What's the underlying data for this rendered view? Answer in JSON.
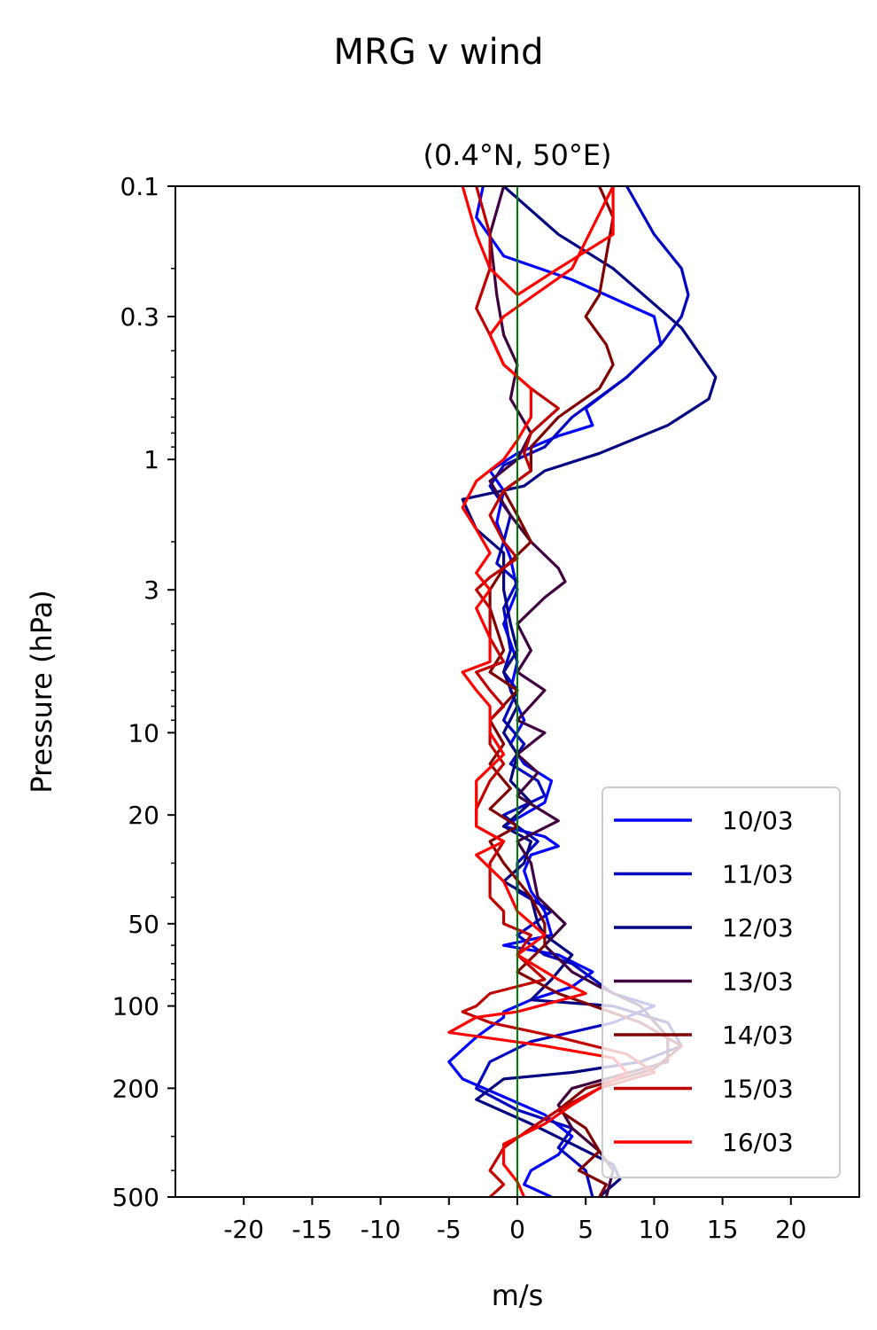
{
  "chart_data": {
    "type": "line",
    "suptitle": "MRG v wind",
    "title": "(0.4°N, 50°E)",
    "xlabel": "m/s",
    "ylabel": "Pressure (hPa)",
    "xlim": [
      -25,
      25
    ],
    "ylim": [
      500,
      0.1
    ],
    "yscale": "log",
    "xticks": [
      -20,
      -15,
      -10,
      -5,
      0,
      5,
      10,
      15,
      20
    ],
    "xtick_labels": [
      "-20",
      "-15",
      "-10",
      "-5",
      "0",
      "5",
      "10",
      "15",
      "20"
    ],
    "yticks": [
      0.1,
      0.3,
      1,
      3,
      10,
      20,
      50,
      100,
      200,
      500
    ],
    "ytick_labels": [
      "0.1",
      "0.3",
      "1",
      "3",
      "10",
      "20",
      "50",
      "100",
      "200",
      "500"
    ],
    "zero_line_color": "#008000",
    "legend_position": "lower-right",
    "series": [
      {
        "name": "10/03",
        "color": "#0000ff",
        "points": [
          [
            -2.5,
            0.1
          ],
          [
            -3,
            0.13
          ],
          [
            -1,
            0.18
          ],
          [
            4,
            0.22
          ],
          [
            10,
            0.3
          ],
          [
            10.5,
            0.38
          ],
          [
            8,
            0.5
          ],
          [
            5,
            0.65
          ],
          [
            5.5,
            0.75
          ],
          [
            3,
            0.82
          ],
          [
            0,
            0.95
          ],
          [
            -2,
            1.1
          ],
          [
            -1,
            1.3
          ],
          [
            -1.5,
            1.7
          ],
          [
            -0.5,
            2.3
          ],
          [
            0,
            3
          ],
          [
            -1,
            4
          ],
          [
            0,
            5.5
          ],
          [
            -0.5,
            7
          ],
          [
            0.5,
            9
          ],
          [
            -0.5,
            11
          ],
          [
            0.5,
            13
          ],
          [
            2.5,
            15
          ],
          [
            2,
            18
          ],
          [
            -1,
            22
          ],
          [
            2,
            24
          ],
          [
            3,
            26
          ],
          [
            1,
            28
          ],
          [
            0.5,
            32
          ],
          [
            1,
            38
          ],
          [
            2,
            45
          ],
          [
            2.5,
            55
          ],
          [
            -1,
            60
          ],
          [
            3,
            65
          ],
          [
            5.5,
            75
          ],
          [
            4,
            85
          ],
          [
            1,
            95
          ],
          [
            -1,
            105
          ],
          [
            -1,
            110
          ],
          [
            -3,
            130
          ],
          [
            -5,
            160
          ],
          [
            -4,
            185
          ],
          [
            -1,
            215
          ],
          [
            2,
            250
          ],
          [
            4,
            300
          ],
          [
            3,
            350
          ],
          [
            1,
            400
          ],
          [
            0.5,
            450
          ],
          [
            2.5,
            500
          ]
        ]
      },
      {
        "name": "11/03",
        "color": "#0000c0",
        "points": [
          [
            8,
            0.1
          ],
          [
            10,
            0.15
          ],
          [
            12,
            0.2
          ],
          [
            12.5,
            0.25
          ],
          [
            12,
            0.3
          ],
          [
            10.5,
            0.38
          ],
          [
            8,
            0.5
          ],
          [
            4,
            0.7
          ],
          [
            2,
            0.9
          ],
          [
            -1,
            1.05
          ],
          [
            -2,
            1.25
          ],
          [
            -0.5,
            1.6
          ],
          [
            -1,
            2
          ],
          [
            -1.5,
            2.4
          ],
          [
            0,
            2.8
          ],
          [
            -1,
            3.5
          ],
          [
            -0.5,
            5
          ],
          [
            -1,
            6
          ],
          [
            0,
            7
          ],
          [
            -1,
            9
          ],
          [
            0.5,
            11
          ],
          [
            -0.5,
            13
          ],
          [
            1.5,
            15
          ],
          [
            2,
            17
          ],
          [
            -1,
            20
          ],
          [
            0,
            22
          ],
          [
            1.5,
            25
          ],
          [
            0,
            30
          ],
          [
            0,
            38
          ],
          [
            2.5,
            45
          ],
          [
            0,
            55
          ],
          [
            2,
            65
          ],
          [
            4,
            70
          ],
          [
            7,
            90
          ],
          [
            10,
            100
          ],
          [
            7,
            115
          ],
          [
            1,
            135
          ],
          [
            -2,
            160
          ],
          [
            -3,
            200
          ],
          [
            0,
            240
          ],
          [
            4,
            280
          ],
          [
            3,
            330
          ],
          [
            5,
            400
          ],
          [
            5.5,
            500
          ]
        ]
      },
      {
        "name": "12/03",
        "color": "#000080",
        "points": [
          [
            -1,
            0.1
          ],
          [
            3,
            0.15
          ],
          [
            7,
            0.2
          ],
          [
            10,
            0.27
          ],
          [
            12,
            0.33
          ],
          [
            14.5,
            0.5
          ],
          [
            14,
            0.6
          ],
          [
            11,
            0.75
          ],
          [
            6,
            0.95
          ],
          [
            2,
            1.1
          ],
          [
            0.5,
            1.25
          ],
          [
            -4,
            1.4
          ],
          [
            -3,
            1.8
          ],
          [
            -1,
            2.2
          ],
          [
            -1,
            3
          ],
          [
            -0.5,
            4
          ],
          [
            0,
            5
          ],
          [
            -1,
            6
          ],
          [
            0,
            8
          ],
          [
            -1,
            10
          ],
          [
            0,
            12
          ],
          [
            -0.5,
            15
          ],
          [
            1,
            18
          ],
          [
            -1,
            22
          ],
          [
            1,
            25
          ],
          [
            0.5,
            30
          ],
          [
            -1,
            35
          ],
          [
            1,
            40
          ],
          [
            1.5,
            50
          ],
          [
            2,
            55
          ],
          [
            4,
            65
          ],
          [
            2.5,
            80
          ],
          [
            1,
            95
          ],
          [
            7,
            100
          ],
          [
            11,
            115
          ],
          [
            12,
            140
          ],
          [
            9,
            160
          ],
          [
            4,
            175
          ],
          [
            -1,
            185
          ],
          [
            -3,
            220
          ],
          [
            1,
            270
          ],
          [
            4,
            320
          ],
          [
            7,
            380
          ],
          [
            7.5,
            430
          ],
          [
            6,
            500
          ]
        ]
      },
      {
        "name": "13/03",
        "color": "#400040",
        "points": [
          [
            -1,
            0.1
          ],
          [
            -2,
            0.15
          ],
          [
            -1.5,
            0.25
          ],
          [
            -1,
            0.35
          ],
          [
            0,
            0.45
          ],
          [
            -0.5,
            0.6
          ],
          [
            1,
            0.8
          ],
          [
            0,
            1
          ],
          [
            -2,
            1.2
          ],
          [
            -0.5,
            1.6
          ],
          [
            1,
            2
          ],
          [
            3,
            2.5
          ],
          [
            3.5,
            2.8
          ],
          [
            2,
            3.2
          ],
          [
            0,
            4
          ],
          [
            1,
            5
          ],
          [
            0,
            6
          ],
          [
            2,
            7
          ],
          [
            0,
            9
          ],
          [
            2,
            10
          ],
          [
            0,
            12
          ],
          [
            1.5,
            14
          ],
          [
            0,
            17
          ],
          [
            3,
            21
          ],
          [
            0,
            25
          ],
          [
            1,
            30
          ],
          [
            1.5,
            40
          ],
          [
            3.5,
            50
          ],
          [
            2,
            60
          ],
          [
            4,
            75
          ],
          [
            6,
            85
          ],
          [
            9,
            100
          ],
          [
            11,
            130
          ],
          [
            11,
            160
          ],
          [
            4,
            200
          ],
          [
            3,
            230
          ],
          [
            4,
            280
          ],
          [
            6,
            340
          ],
          [
            7,
            400
          ],
          [
            6.5,
            500
          ]
        ]
      },
      {
        "name": "14/03",
        "color": "#800000",
        "points": [
          [
            6,
            0.1
          ],
          [
            7,
            0.13
          ],
          [
            6.5,
            0.18
          ],
          [
            6,
            0.25
          ],
          [
            5,
            0.3
          ],
          [
            6.5,
            0.38
          ],
          [
            7,
            0.45
          ],
          [
            6,
            0.55
          ],
          [
            3,
            0.7
          ],
          [
            1,
            0.9
          ],
          [
            1,
            1.1
          ],
          [
            -1,
            1.3
          ],
          [
            0,
            1.6
          ],
          [
            1,
            2
          ],
          [
            -1,
            2.5
          ],
          [
            -2,
            3
          ],
          [
            -2,
            3.5
          ],
          [
            -1,
            5
          ],
          [
            -2,
            6
          ],
          [
            0,
            7
          ],
          [
            -2,
            9
          ],
          [
            -1,
            11
          ],
          [
            -2,
            13
          ],
          [
            -0.5,
            16
          ],
          [
            -2,
            19
          ],
          [
            0,
            22
          ],
          [
            -2,
            25
          ],
          [
            -1,
            30
          ],
          [
            1,
            40
          ],
          [
            2,
            50
          ],
          [
            2,
            60
          ],
          [
            0,
            75
          ],
          [
            3,
            90
          ],
          [
            9,
            115
          ],
          [
            12,
            140
          ],
          [
            10,
            170
          ],
          [
            5,
            200
          ],
          [
            3,
            240
          ],
          [
            5,
            280
          ],
          [
            6,
            340
          ],
          [
            4.5,
            400
          ],
          [
            6.5,
            450
          ],
          [
            6,
            500
          ]
        ]
      },
      {
        "name": "15/03",
        "color": "#c00000",
        "points": [
          [
            -3,
            0.1
          ],
          [
            -2,
            0.15
          ],
          [
            -2,
            0.2
          ],
          [
            -3,
            0.28
          ],
          [
            -2,
            0.35
          ],
          [
            -1,
            0.45
          ],
          [
            1,
            0.55
          ],
          [
            3,
            0.65
          ],
          [
            1,
            0.8
          ],
          [
            0.5,
            0.95
          ],
          [
            1,
            1.1
          ],
          [
            -1,
            1.3
          ],
          [
            -2,
            1.6
          ],
          [
            -1,
            2
          ],
          [
            0,
            2.3
          ],
          [
            -2,
            2.7
          ],
          [
            -3,
            3
          ],
          [
            -2,
            3.5
          ],
          [
            -2,
            4.5
          ],
          [
            -1,
            5.5
          ],
          [
            -3,
            6
          ],
          [
            -2,
            7
          ],
          [
            -1,
            8
          ],
          [
            -2,
            9
          ],
          [
            -2,
            11
          ],
          [
            -1,
            13
          ],
          [
            -2,
            15
          ],
          [
            -3,
            19
          ],
          [
            -3,
            22
          ],
          [
            -1,
            25
          ],
          [
            -2,
            30
          ],
          [
            -2,
            35
          ],
          [
            -2,
            40
          ],
          [
            -1,
            45
          ],
          [
            -1,
            50
          ],
          [
            1,
            55
          ],
          [
            0,
            65
          ],
          [
            2,
            80
          ],
          [
            -2,
            90
          ],
          [
            -3,
            100
          ],
          [
            -4,
            105
          ],
          [
            -2,
            115
          ],
          [
            3,
            130
          ],
          [
            8,
            150
          ],
          [
            10,
            175
          ],
          [
            6,
            200
          ],
          [
            3,
            240
          ],
          [
            1,
            280
          ],
          [
            -1,
            330
          ],
          [
            -2,
            400
          ],
          [
            -1,
            450
          ],
          [
            -2,
            500
          ]
        ]
      },
      {
        "name": "16/03",
        "color": "#ff0000",
        "points": [
          [
            -4,
            0.1
          ],
          [
            -3,
            0.15
          ],
          [
            -2,
            0.2
          ],
          [
            0,
            0.25
          ],
          [
            3,
            0.2
          ],
          [
            7,
            0.15
          ],
          [
            7,
            0.1
          ],
          [
            4,
            0.2
          ],
          [
            -1,
            0.3
          ],
          [
            -2,
            0.35
          ],
          [
            -1,
            0.45
          ],
          [
            1,
            0.55
          ],
          [
            1,
            0.7
          ],
          [
            0,
            0.85
          ],
          [
            -1,
            1
          ],
          [
            -3,
            1.2
          ],
          [
            -4,
            1.5
          ],
          [
            -3,
            1.8
          ],
          [
            -2,
            2.2
          ],
          [
            -3,
            2.6
          ],
          [
            -2,
            3
          ],
          [
            -3,
            3.5
          ],
          [
            -2,
            4.5
          ],
          [
            -2,
            5.5
          ],
          [
            -4,
            6
          ],
          [
            -3,
            7
          ],
          [
            -2,
            8
          ],
          [
            -2,
            10
          ],
          [
            -1,
            12
          ],
          [
            -3,
            15
          ],
          [
            -3,
            20
          ],
          [
            -3,
            22
          ],
          [
            -1,
            25
          ],
          [
            -3,
            28
          ],
          [
            -1,
            35
          ],
          [
            0,
            45
          ],
          [
            2,
            55
          ],
          [
            0,
            65
          ],
          [
            3,
            80
          ],
          [
            5,
            90
          ],
          [
            0,
            105
          ],
          [
            -3,
            110
          ],
          [
            -5,
            125
          ],
          [
            2,
            140
          ],
          [
            7,
            155
          ],
          [
            8,
            175
          ],
          [
            6,
            200
          ],
          [
            4,
            230
          ],
          [
            2,
            270
          ],
          [
            -1,
            320
          ],
          [
            -1,
            380
          ],
          [
            0,
            440
          ],
          [
            0.5,
            500
          ]
        ]
      }
    ]
  }
}
